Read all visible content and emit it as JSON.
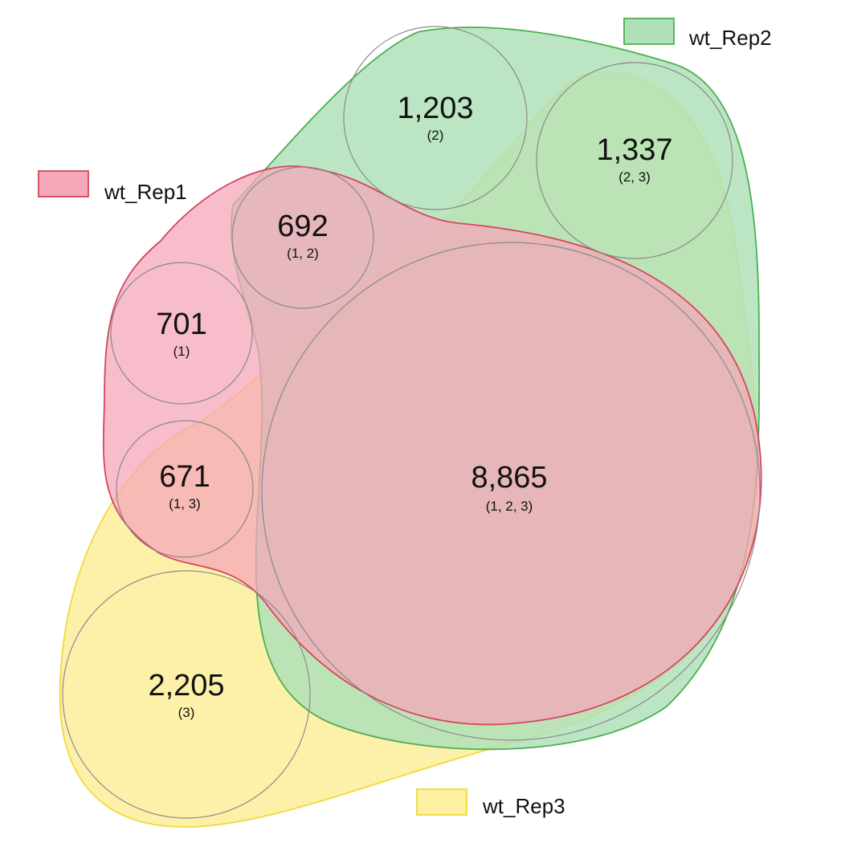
{
  "chart_data": {
    "type": "venn",
    "sets": [
      {
        "name": "wt_Rep1",
        "fill": "#f4a7b9",
        "stroke": "#d6455f"
      },
      {
        "name": "wt_Rep2",
        "fill": "#b0e0b8",
        "stroke": "#4caf50"
      },
      {
        "name": "wt_Rep3",
        "fill": "#fdf0a0",
        "stroke": "#f2d83a"
      }
    ],
    "regions": [
      {
        "sets": "1",
        "count": "701",
        "label": "(1)"
      },
      {
        "sets": "2",
        "count": "1,203",
        "label": "(2)"
      },
      {
        "sets": "3",
        "count": "2,205",
        "label": "(3)"
      },
      {
        "sets": "1,2",
        "count": "692",
        "label": "(1, 2)"
      },
      {
        "sets": "1,3",
        "count": "671",
        "label": "(1, 3)"
      },
      {
        "sets": "2,3",
        "count": "1,337",
        "label": "(2, 3)"
      },
      {
        "sets": "1,2,3",
        "count": "8,865",
        "label": "(1, 2, 3)"
      }
    ]
  }
}
